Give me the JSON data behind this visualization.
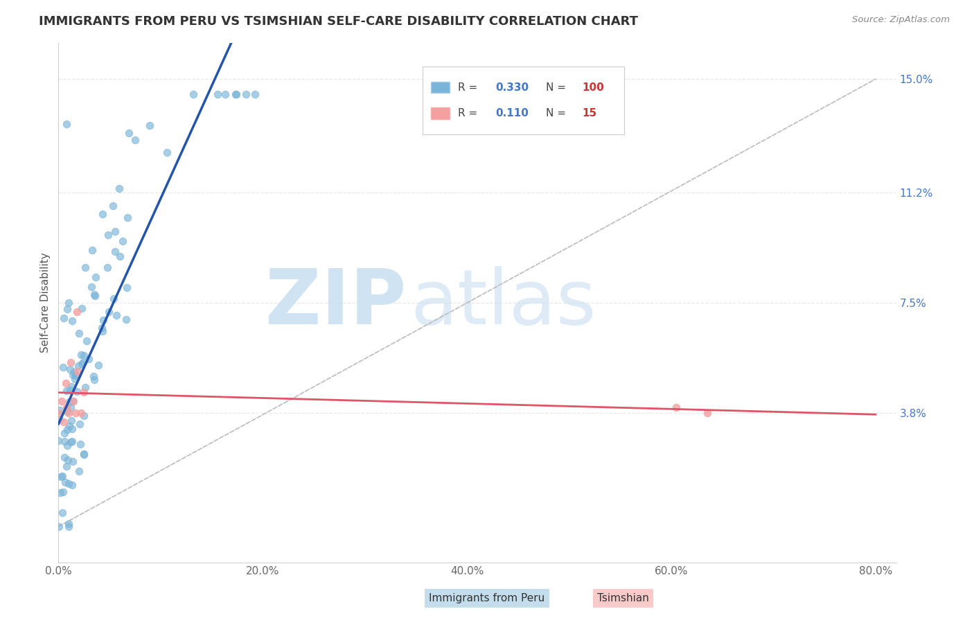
{
  "title": "IMMIGRANTS FROM PERU VS TSIMSHIAN SELF-CARE DISABILITY CORRELATION CHART",
  "source": "Source: ZipAtlas.com",
  "ylabel": "Self-Care Disability",
  "x_min": 0.0,
  "x_max": 0.82,
  "y_min": -0.012,
  "y_max": 0.162,
  "y_ticks": [
    0.038,
    0.075,
    0.112,
    0.15
  ],
  "y_tick_labels": [
    "3.8%",
    "7.5%",
    "11.2%",
    "15.0%"
  ],
  "x_ticks": [
    0.0,
    0.2,
    0.4,
    0.6,
    0.8
  ],
  "x_tick_labels": [
    "0.0%",
    "20.0%",
    "40.0%",
    "60.0%",
    "80.0%"
  ],
  "blue_color": "#7ab4d8",
  "pink_color": "#f4a0a0",
  "blue_line_color": "#2255aa",
  "pink_line_color": "#dd5566",
  "ref_line_color": "#bbbbbb",
  "watermark_zip": "ZIP",
  "watermark_atlas": "atlas",
  "bg_color": "#ffffff",
  "grid_color": "#e8e8e8",
  "title_color": "#333333",
  "source_color": "#888888",
  "ytick_color": "#4477cc",
  "xtick_color": "#666666",
  "ylabel_color": "#555555",
  "legend_r_color": "#4477cc",
  "legend_n_color": "#cc3333"
}
